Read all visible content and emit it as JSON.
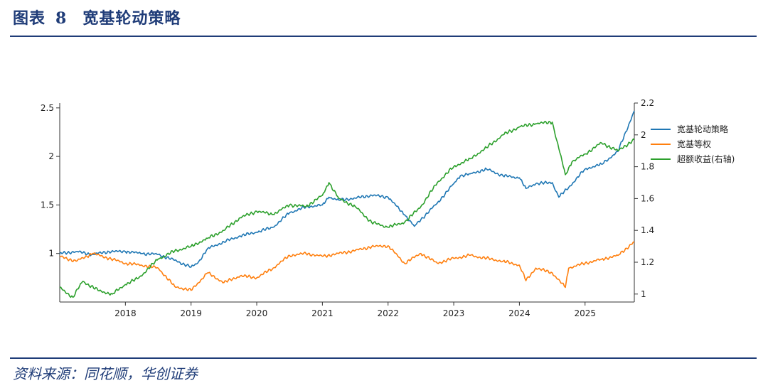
{
  "header": {
    "label": "图表",
    "number": "8",
    "title": "宽基轮动策略"
  },
  "source": "资料来源：同花顺，华创证券",
  "chart_data": {
    "type": "line",
    "title": "宽基轮动策略",
    "x_range": [
      2017.0,
      2025.75
    ],
    "x_ticks": [
      "2018",
      "2019",
      "2020",
      "2021",
      "2022",
      "2023",
      "2024",
      "2025"
    ],
    "left_axis": {
      "ylim": [
        0.5,
        2.55
      ],
      "ticks": [
        1,
        1.5,
        2,
        2.5
      ],
      "tick_labels": [
        "1",
        "1.5",
        "2",
        "2.5"
      ]
    },
    "right_axis": {
      "ylim": [
        0.95,
        2.2
      ],
      "ticks": [
        1,
        1.2,
        1.4,
        1.6,
        1.8,
        2.0,
        2.2
      ],
      "tick_labels": [
        "1",
        "1.2",
        "1.4",
        "1.6",
        "1.8",
        "2",
        "2.2"
      ]
    },
    "legend": [
      "宽基轮动策略",
      "宽基等权",
      "超额收益(右轴)"
    ],
    "series": [
      {
        "name": "宽基轮动策略",
        "axis": "left",
        "color": "#1f77b4",
        "x": [
          2017.0,
          2017.25,
          2017.5,
          2017.75,
          2018.0,
          2018.25,
          2018.5,
          2018.75,
          2019.0,
          2019.1,
          2019.25,
          2019.5,
          2019.75,
          2020.0,
          2020.25,
          2020.5,
          2020.75,
          2021.0,
          2021.1,
          2021.25,
          2021.5,
          2021.75,
          2022.0,
          2022.25,
          2022.4,
          2022.5,
          2022.75,
          2023.0,
          2023.1,
          2023.25,
          2023.5,
          2023.75,
          2024.0,
          2024.1,
          2024.25,
          2024.5,
          2024.6,
          2024.75,
          2025.0,
          2025.25,
          2025.5,
          2025.75
        ],
        "y": [
          1.0,
          1.02,
          0.99,
          1.02,
          1.02,
          1.0,
          0.99,
          0.93,
          0.86,
          0.9,
          1.05,
          1.12,
          1.18,
          1.22,
          1.27,
          1.42,
          1.48,
          1.5,
          1.58,
          1.55,
          1.57,
          1.6,
          1.58,
          1.4,
          1.28,
          1.35,
          1.52,
          1.72,
          1.8,
          1.82,
          1.87,
          1.8,
          1.78,
          1.67,
          1.72,
          1.73,
          1.58,
          1.68,
          1.87,
          1.92,
          2.05,
          2.47
        ]
      },
      {
        "name": "宽基等权",
        "axis": "left",
        "color": "#ff7f0e",
        "x": [
          2017.0,
          2017.25,
          2017.5,
          2017.75,
          2018.0,
          2018.25,
          2018.5,
          2018.75,
          2019.0,
          2019.25,
          2019.5,
          2019.75,
          2020.0,
          2020.25,
          2020.5,
          2020.75,
          2021.0,
          2021.25,
          2021.5,
          2021.75,
          2022.0,
          2022.25,
          2022.5,
          2022.75,
          2023.0,
          2023.25,
          2023.5,
          2023.75,
          2024.0,
          2024.1,
          2024.25,
          2024.5,
          2024.7,
          2024.75,
          2025.0,
          2025.25,
          2025.5,
          2025.75
        ],
        "y": [
          0.97,
          0.92,
          1.0,
          0.95,
          0.9,
          0.88,
          0.85,
          0.66,
          0.62,
          0.8,
          0.7,
          0.77,
          0.75,
          0.85,
          0.98,
          1.0,
          0.97,
          1.0,
          1.03,
          1.07,
          1.08,
          0.9,
          1.0,
          0.9,
          0.95,
          0.98,
          0.95,
          0.92,
          0.88,
          0.72,
          0.85,
          0.8,
          0.65,
          0.85,
          0.9,
          0.94,
          0.98,
          1.12
        ]
      },
      {
        "name": "超额收益(右轴)",
        "axis": "right",
        "color": "#2ca02c",
        "x": [
          2017.0,
          2017.2,
          2017.35,
          2017.6,
          2017.8,
          2018.0,
          2018.2,
          2018.5,
          2018.75,
          2019.0,
          2019.25,
          2019.5,
          2019.75,
          2020.0,
          2020.25,
          2020.5,
          2020.75,
          2021.0,
          2021.1,
          2021.25,
          2021.5,
          2021.75,
          2022.0,
          2022.25,
          2022.5,
          2022.75,
          2023.0,
          2023.25,
          2023.5,
          2023.75,
          2024.0,
          2024.25,
          2024.5,
          2024.7,
          2024.8,
          2025.0,
          2025.25,
          2025.5,
          2025.75
        ],
        "y": [
          1.04,
          0.98,
          1.08,
          1.02,
          1.0,
          1.06,
          1.1,
          1.22,
          1.27,
          1.3,
          1.35,
          1.4,
          1.48,
          1.52,
          1.5,
          1.56,
          1.55,
          1.62,
          1.7,
          1.6,
          1.55,
          1.45,
          1.42,
          1.45,
          1.55,
          1.7,
          1.8,
          1.85,
          1.92,
          2.0,
          2.05,
          2.07,
          2.08,
          1.75,
          1.83,
          1.88,
          1.95,
          1.9,
          1.97
        ]
      }
    ]
  }
}
